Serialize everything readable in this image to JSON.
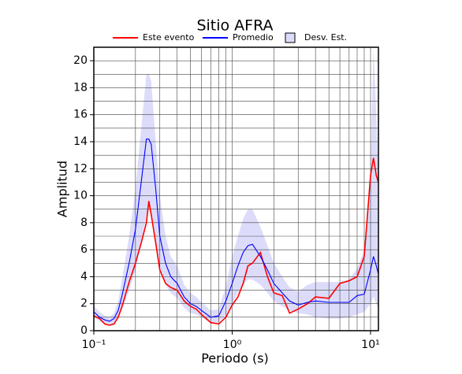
{
  "chart_data": {
    "type": "line",
    "title": "Sitio AFRA",
    "x_label": "Periodo (s)",
    "y_label": "Amplitud",
    "log_x": true,
    "grid": true,
    "xlim": [
      0.1,
      11.4
    ],
    "ylim": [
      0,
      21
    ],
    "xticks": [
      {
        "value": 0.1,
        "label": "10⁻¹"
      },
      {
        "value": 1,
        "label": "10⁰"
      },
      {
        "value": 10,
        "label": "10¹"
      }
    ],
    "xminorticks": [
      0.2,
      0.3,
      0.4,
      0.5,
      0.6,
      0.7,
      0.8,
      0.9,
      2,
      3,
      4,
      5,
      6,
      7,
      8,
      9
    ],
    "yticks": [
      0,
      2,
      4,
      6,
      8,
      10,
      12,
      14,
      16,
      18,
      20
    ],
    "yminorticks": [
      1,
      3,
      5,
      7,
      9,
      11,
      13,
      15,
      17,
      19
    ],
    "x": [
      0.1,
      0.11,
      0.12,
      0.13,
      0.14,
      0.15,
      0.16,
      0.18,
      0.2,
      0.22,
      0.24,
      0.25,
      0.26,
      0.28,
      0.3,
      0.33,
      0.36,
      0.4,
      0.45,
      0.5,
      0.55,
      0.6,
      0.7,
      0.8,
      0.9,
      1.0,
      1.1,
      1.2,
      1.3,
      1.4,
      1.6,
      1.8,
      2.0,
      2.3,
      2.6,
      3.0,
      3.5,
      4,
      5,
      6,
      7,
      8,
      9,
      10,
      10.5,
      11,
      11.4
    ],
    "band": {
      "name": "Desv. Est.",
      "color": "#dcdcfa",
      "lower": [
        1.0,
        0.7,
        0.5,
        0.4,
        0.5,
        0.9,
        1.6,
        3.0,
        4.5,
        6.5,
        8.5,
        9,
        8.5,
        6.5,
        4.5,
        3.4,
        2.8,
        2.4,
        1.7,
        1.3,
        1.2,
        1.0,
        0.6,
        0.6,
        1.2,
        2.0,
        2.8,
        3.4,
        3.8,
        3.8,
        3.4,
        2.8,
        2.2,
        1.8,
        1.5,
        1.3,
        1.2,
        1.0,
        0.9,
        0.9,
        1.0,
        1.2,
        1.4,
        2.0,
        2.5,
        2.0,
        1.6
      ],
      "upper": [
        1.8,
        1.4,
        1.1,
        1.0,
        1.3,
        2.2,
        3.8,
        7.0,
        10.5,
        15,
        19,
        19,
        18.5,
        14,
        10,
        7,
        5.5,
        4.8,
        3.4,
        2.8,
        2.5,
        2.1,
        1.5,
        1.6,
        3.3,
        5.5,
        7.0,
        8.3,
        9.0,
        9.0,
        7.7,
        6.3,
        5.0,
        4.0,
        3.2,
        2.9,
        3.4,
        3.6,
        3.6,
        3.6,
        3.8,
        4.6,
        6.0,
        12,
        21,
        16,
        11
      ]
    },
    "series": [
      {
        "name": "Este evento",
        "color": "#ff0000",
        "values": [
          1.1,
          0.9,
          0.5,
          0.4,
          0.5,
          1.0,
          1.8,
          3.6,
          5,
          6.5,
          8,
          9.6,
          8.6,
          6.5,
          4.5,
          3.5,
          3.2,
          3.0,
          2.2,
          1.8,
          1.6,
          1.2,
          0.6,
          0.5,
          1.0,
          1.9,
          2.5,
          3.5,
          4.8,
          5.0,
          5.8,
          4.0,
          2.8,
          2.6,
          1.3,
          1.6,
          2.0,
          2.5,
          2.4,
          3.5,
          3.7,
          4.0,
          5.5,
          11.5,
          12.8,
          11.5,
          11
        ]
      },
      {
        "name": "Promedio",
        "color": "#0000ff",
        "values": [
          1.4,
          1.0,
          0.8,
          0.7,
          0.9,
          1.5,
          2.6,
          5,
          7.5,
          11,
          14.2,
          14.2,
          13.8,
          10.5,
          7,
          5,
          4,
          3.5,
          2.5,
          2.0,
          1.8,
          1.5,
          1.0,
          1.1,
          2.2,
          3.5,
          4.8,
          5.8,
          6.3,
          6.4,
          5.5,
          4.5,
          3.5,
          2.8,
          2.2,
          1.9,
          2.1,
          2.2,
          2.1,
          2.1,
          2.1,
          2.6,
          2.7,
          4.5,
          5.5,
          4.8,
          4.2
        ]
      }
    ]
  }
}
